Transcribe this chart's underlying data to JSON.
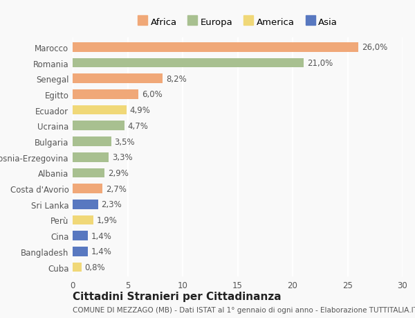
{
  "categories": [
    "Marocco",
    "Romania",
    "Senegal",
    "Egitto",
    "Ecuador",
    "Ucraina",
    "Bulgaria",
    "Bosnia-Erzegovina",
    "Albania",
    "Costa d'Avorio",
    "Sri Lanka",
    "Perù",
    "Cina",
    "Bangladesh",
    "Cuba"
  ],
  "values": [
    26.0,
    21.0,
    8.2,
    6.0,
    4.9,
    4.7,
    3.5,
    3.3,
    2.9,
    2.7,
    2.3,
    1.9,
    1.4,
    1.4,
    0.8
  ],
  "continents": [
    "Africa",
    "Europa",
    "Africa",
    "Africa",
    "America",
    "Europa",
    "Europa",
    "Europa",
    "Europa",
    "Africa",
    "Asia",
    "America",
    "Asia",
    "Asia",
    "America"
  ],
  "colors": {
    "Africa": "#F0A878",
    "Europa": "#A8C090",
    "America": "#F0D878",
    "Asia": "#5878C0"
  },
  "legend_order": [
    "Africa",
    "Europa",
    "America",
    "Asia"
  ],
  "xlim": [
    0,
    30
  ],
  "xticks": [
    0,
    5,
    10,
    15,
    20,
    25,
    30
  ],
  "title": "Cittadini Stranieri per Cittadinanza",
  "subtitle": "COMUNE DI MEZZAGO (MB) - Dati ISTAT al 1° gennaio di ogni anno - Elaborazione TUTTITALIA.IT",
  "background_color": "#f9f9f9",
  "bar_height": 0.6,
  "title_fontsize": 11,
  "subtitle_fontsize": 7.5,
  "label_fontsize": 8.5,
  "tick_fontsize": 8.5,
  "legend_fontsize": 9.5
}
